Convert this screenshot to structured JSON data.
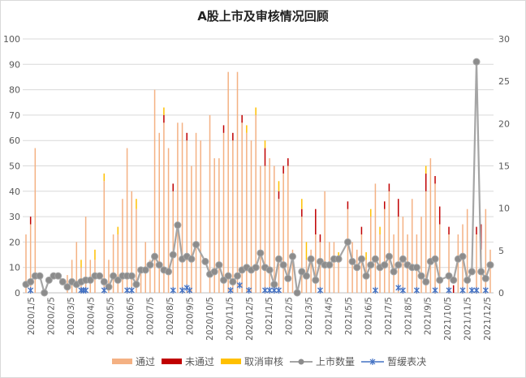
{
  "chart_data": {
    "type": "bar",
    "title": "A股上市及审核情况回顾",
    "x_start": "2020/1/5",
    "x_unit": "week",
    "x_tick_labels": [
      "2020/1/5",
      "2020/2/5",
      "2020/3/5",
      "2020/4/5",
      "2020/5/5",
      "2020/6/5",
      "2020/7/5",
      "2020/8/5",
      "2020/9/5",
      "2020/10/5",
      "2020/11/5",
      "2020/12/5",
      "2021/1/5",
      "2021/2/5",
      "2021/3/5",
      "2021/4/5",
      "2021/5/5",
      "2021/6/5",
      "2021/7/5",
      "2021/8/5",
      "2021/9/5",
      "2021/10/5",
      "2021/11/5",
      "2021/12/5"
    ],
    "left_axis": {
      "ylim": [
        0,
        100
      ],
      "ticks": [
        "0",
        "10",
        "20",
        "30",
        "40",
        "50",
        "60",
        "70",
        "80",
        "90",
        "100"
      ]
    },
    "right_axis": {
      "ylim": [
        0,
        30
      ],
      "ticks": [
        "0",
        "5",
        "10",
        "15",
        "20",
        "25",
        "30"
      ]
    },
    "grid": true,
    "legend_position": "bottom",
    "series": [
      {
        "name": "通过",
        "kind": "stacked-bar",
        "axis": "left",
        "color": "#F4B183",
        "values": [
          23,
          27,
          57,
          0,
          0,
          0,
          0,
          0,
          0,
          7,
          13,
          20,
          10,
          30,
          13,
          13,
          0,
          44,
          13,
          23,
          23,
          37,
          57,
          40,
          33,
          10,
          20,
          13,
          80,
          63,
          67,
          57,
          40,
          67,
          67,
          60,
          50,
          63,
          60,
          0,
          70,
          53,
          53,
          63,
          87,
          60,
          87,
          67,
          63,
          60,
          70,
          50,
          50,
          53,
          50,
          37,
          47,
          50,
          17,
          0,
          30,
          13,
          17,
          23,
          20,
          40,
          20,
          20,
          13,
          0,
          33,
          20,
          17,
          23,
          13,
          30,
          43,
          23,
          33,
          40,
          23,
          30,
          30,
          23,
          37,
          23,
          30,
          40,
          53,
          43,
          27,
          0,
          23,
          0,
          23,
          27,
          33,
          0,
          23,
          17,
          33,
          17
        ]
      },
      {
        "name": "未通过",
        "kind": "stacked-bar",
        "axis": "left",
        "color": "#C00000",
        "values": [
          0,
          3,
          0,
          0,
          0,
          0,
          0,
          0,
          0,
          0,
          0,
          0,
          0,
          0,
          0,
          0,
          0,
          0,
          0,
          0,
          0,
          0,
          0,
          0,
          0,
          0,
          0,
          0,
          0,
          0,
          3,
          0,
          3,
          0,
          0,
          3,
          0,
          0,
          0,
          0,
          0,
          0,
          0,
          3,
          0,
          3,
          0,
          3,
          0,
          0,
          0,
          0,
          7,
          0,
          0,
          3,
          3,
          3,
          0,
          0,
          3,
          0,
          0,
          10,
          3,
          0,
          0,
          0,
          0,
          0,
          3,
          0,
          0,
          3,
          0,
          0,
          0,
          0,
          3,
          3,
          0,
          7,
          0,
          0,
          0,
          0,
          0,
          7,
          0,
          3,
          7,
          0,
          3,
          3,
          0,
          0,
          0,
          0,
          3,
          10,
          0,
          0
        ]
      },
      {
        "name": "取消审核",
        "kind": "stacked-bar",
        "axis": "left",
        "color": "#FFC000",
        "values": [
          0,
          0,
          0,
          0,
          0,
          0,
          0,
          0,
          0,
          0,
          0,
          0,
          3,
          0,
          0,
          4,
          0,
          3,
          0,
          0,
          3,
          0,
          0,
          0,
          4,
          0,
          0,
          0,
          0,
          0,
          3,
          0,
          0,
          0,
          0,
          0,
          0,
          0,
          0,
          0,
          0,
          0,
          0,
          0,
          0,
          0,
          0,
          0,
          3,
          0,
          3,
          0,
          3,
          0,
          0,
          4,
          0,
          0,
          0,
          0,
          4,
          7,
          0,
          0,
          0,
          0,
          0,
          0,
          3,
          0,
          0,
          0,
          0,
          0,
          3,
          3,
          0,
          3,
          0,
          0,
          0,
          0,
          0,
          0,
          0,
          0,
          0,
          3,
          0,
          0,
          0,
          0,
          0,
          0,
          0,
          0,
          0,
          0,
          0,
          0,
          0,
          0
        ]
      },
      {
        "name": "上市数量",
        "kind": "line",
        "axis": "right",
        "color": "#A5A5A5",
        "values": [
          1,
          1.3,
          2,
          2,
          0,
          1.5,
          2,
          2,
          1.3,
          0.7,
          1.3,
          1,
          1.3,
          1.5,
          1.5,
          2,
          2,
          1.3,
          0.7,
          2,
          1.5,
          2,
          2,
          2,
          1,
          2.7,
          2.7,
          3.3,
          4.3,
          3.3,
          2.7,
          2.5,
          4.5,
          8,
          4,
          4.3,
          4,
          5.7,
          null,
          3.7,
          2.2,
          2.5,
          3.3,
          1.5,
          2,
          1.3,
          2,
          2.7,
          3,
          2.7,
          3,
          4.7,
          3,
          2.7,
          1,
          4,
          3.3,
          1.7,
          4.3,
          0,
          2.5,
          2,
          4,
          1.5,
          3.7,
          3.3,
          3.3,
          4,
          4,
          null,
          6,
          3.7,
          3,
          4,
          2,
          3.3,
          4,
          3,
          3.3,
          4.3,
          2.5,
          3.3,
          4,
          3.3,
          3,
          3,
          2,
          1.3,
          3.7,
          4,
          1.5,
          null,
          2,
          1.5,
          4,
          4.3,
          1.5,
          2.5,
          27.3,
          2.5,
          1.7,
          3.3
        ]
      },
      {
        "name": "暂缓表决",
        "kind": "scatter",
        "axis": "right",
        "color": "#4472C4",
        "points": [
          {
            "x": 1,
            "y": 0.3
          },
          {
            "x": 12,
            "y": 0.3
          },
          {
            "x": 12.5,
            "y": 0.3
          },
          {
            "x": 13,
            "y": 0.3
          },
          {
            "x": 17,
            "y": 0.3
          },
          {
            "x": 22,
            "y": 0.3
          },
          {
            "x": 23,
            "y": 0.3
          },
          {
            "x": 32,
            "y": 0.3
          },
          {
            "x": 34,
            "y": 0.3
          },
          {
            "x": 35,
            "y": 0.6
          },
          {
            "x": 35.6,
            "y": 0.3
          },
          {
            "x": 44.5,
            "y": 0.3
          },
          {
            "x": 46.5,
            "y": 0.9
          },
          {
            "x": 48.5,
            "y": 0.3
          },
          {
            "x": 52,
            "y": 0.3
          },
          {
            "x": 53,
            "y": 0.3
          },
          {
            "x": 54,
            "y": 0.3
          },
          {
            "x": 55,
            "y": 0.3
          },
          {
            "x": 64,
            "y": 0.3
          },
          {
            "x": 76,
            "y": 0.3
          },
          {
            "x": 81,
            "y": 0.6
          },
          {
            "x": 82,
            "y": 0.3
          },
          {
            "x": 85,
            "y": 0.3
          },
          {
            "x": 89,
            "y": 0.3
          },
          {
            "x": 92,
            "y": 0.3
          },
          {
            "x": 95,
            "y": 0.3
          },
          {
            "x": 97,
            "y": 0.3
          },
          {
            "x": 98,
            "y": 0.3
          },
          {
            "x": 100,
            "y": 0.3
          }
        ]
      }
    ]
  }
}
